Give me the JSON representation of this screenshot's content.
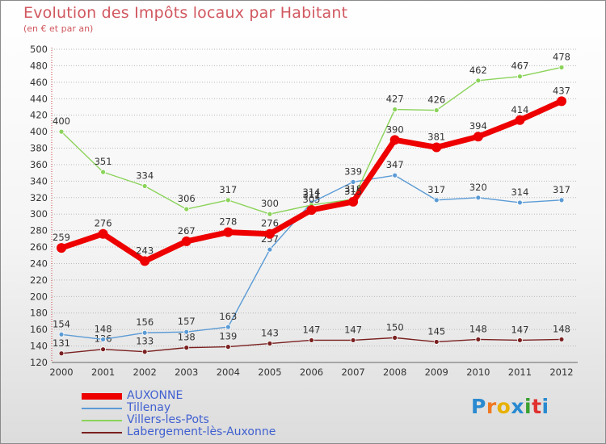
{
  "header": {
    "title": "Evolution des Impôts locaux par Habitant",
    "subtitle": "(en € et par an)"
  },
  "chart_data": {
    "type": "line",
    "title": "Evolution des Impôts locaux par Habitant",
    "subtitle": "(en € et par an)",
    "xlabel": "",
    "ylabel": "",
    "x": [
      "2000",
      "2001",
      "2002",
      "2003",
      "2004",
      "2005",
      "2006",
      "2007",
      "2008",
      "2009",
      "2010",
      "2011",
      "2012"
    ],
    "ylim": [
      120,
      500
    ],
    "yticks": [
      120,
      140,
      160,
      180,
      200,
      220,
      240,
      260,
      280,
      300,
      320,
      340,
      360,
      380,
      400,
      420,
      440,
      460,
      480,
      500
    ],
    "grid": "horizontal dotted",
    "legend_position": "bottom-left",
    "series": [
      {
        "name": "AUXONNE",
        "color": "#ee0000",
        "values": [
          259,
          276,
          243,
          267,
          278,
          276,
          305,
          315,
          390,
          381,
          394,
          414,
          437
        ]
      },
      {
        "name": "Tillenay",
        "color": "#5b9bd5",
        "values": [
          154,
          148,
          156,
          157,
          163,
          257,
          314,
          339,
          347,
          317,
          320,
          314,
          317
        ]
      },
      {
        "name": "Villers-les-Pots",
        "color": "#8bd35a",
        "values": [
          400,
          351,
          334,
          306,
          317,
          300,
          311,
          318,
          427,
          426,
          462,
          467,
          478
        ]
      },
      {
        "name": "Labergement-lès-Auxonne",
        "color": "#7a2020",
        "values": [
          131,
          136,
          133,
          138,
          139,
          143,
          147,
          147,
          150,
          145,
          148,
          147,
          148
        ]
      }
    ]
  },
  "logo": {
    "text": "Proxiti",
    "letters": [
      "P",
      "r",
      "o",
      "x",
      "i",
      "t",
      "i"
    ],
    "colors": [
      "#2a8ad0",
      "#f07820",
      "#e8b000",
      "#2a8ad0",
      "#3aa030",
      "#e03030",
      "#2a8ad0"
    ]
  }
}
